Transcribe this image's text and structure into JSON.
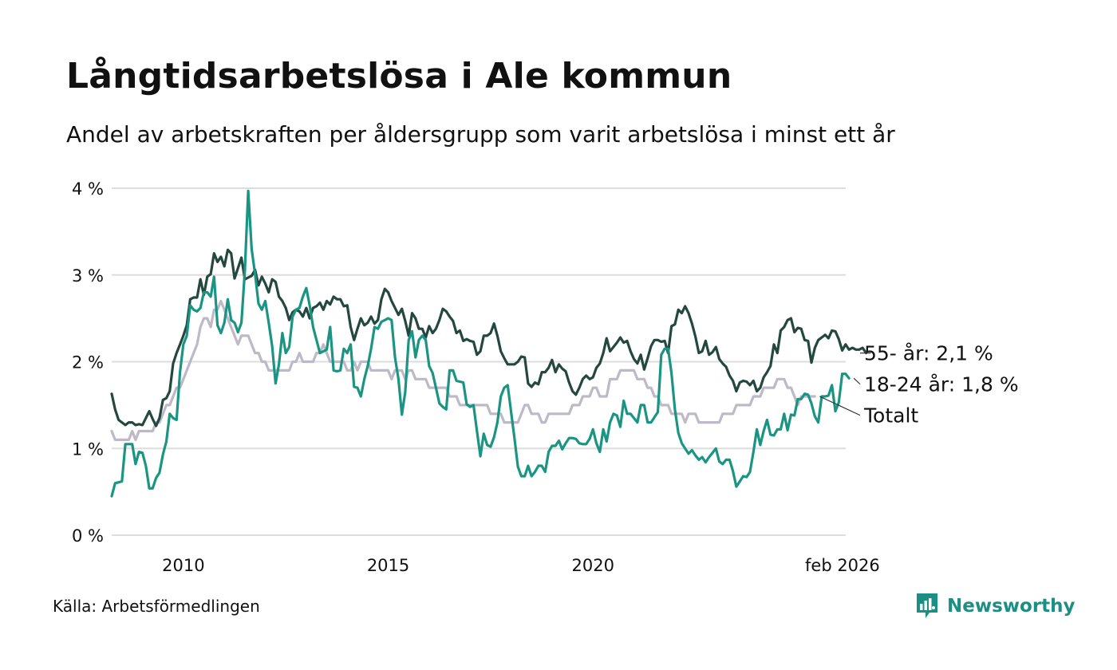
{
  "title": "Långtidsarbetslösa i Ale kommun",
  "subtitle": "Andel av arbetskraften per åldersgrupp som varit arbetslösa i minst ett år",
  "source": "Källa: Arbetsförmedlingen",
  "brand": "Newsworthy",
  "colors": {
    "dark_series": "#24473f",
    "teal_series": "#1a9483",
    "total_series": "#bdb9c9",
    "grid": "#dddddd",
    "brand": "#1b8f84"
  },
  "chart_data": {
    "type": "line",
    "title": "Långtidsarbetslösa i Ale kommun",
    "xlabel": "",
    "ylabel": "",
    "x_start": 2008.25,
    "x_step": 0.0833333,
    "xlim": [
      2008.25,
      2026.17
    ],
    "ylim": [
      0,
      4
    ],
    "y_ticks": [
      {
        "value": 0,
        "label": "0 %"
      },
      {
        "value": 1,
        "label": "1 %"
      },
      {
        "value": 2,
        "label": "2 %"
      },
      {
        "value": 3,
        "label": "3 %"
      },
      {
        "value": 4,
        "label": "4 %"
      }
    ],
    "x_ticks": [
      {
        "value": 2010,
        "label": "2010"
      },
      {
        "value": 2015,
        "label": "2015"
      },
      {
        "value": 2020,
        "label": "2020"
      },
      {
        "value": 2026.09,
        "label": "feb 2026"
      }
    ],
    "grid": true,
    "series": [
      {
        "name": "Totalt",
        "label": "Totalt",
        "color": "#bdb9c9",
        "values": [
          1.2,
          1.1,
          1.1,
          1.1,
          1.1,
          1.1,
          1.2,
          1.1,
          1.2,
          1.2,
          1.2,
          1.2,
          1.2,
          1.3,
          1.3,
          1.4,
          1.5,
          1.5,
          1.6,
          1.7,
          1.7,
          1.8,
          1.9,
          2.0,
          2.1,
          2.2,
          2.4,
          2.5,
          2.5,
          2.4,
          2.6,
          2.6,
          2.7,
          2.6,
          2.5,
          2.4,
          2.3,
          2.2,
          2.3,
          2.3,
          2.3,
          2.2,
          2.1,
          2.1,
          2.0,
          2.0,
          1.9,
          1.9,
          1.9,
          1.9,
          1.9,
          1.9,
          1.9,
          2.0,
          2.0,
          2.1,
          2.0,
          2.0,
          2.0,
          2.0,
          2.1,
          2.1,
          2.2,
          2.1,
          2.0,
          2.0,
          2.0,
          2.0,
          2.0,
          1.9,
          1.9,
          2.0,
          1.9,
          2.0,
          2.0,
          2.0,
          1.9,
          1.9,
          1.9,
          1.9,
          1.9,
          1.9,
          1.8,
          1.9,
          1.9,
          1.9,
          1.8,
          1.9,
          1.9,
          1.8,
          1.8,
          1.8,
          1.8,
          1.7,
          1.7,
          1.7,
          1.7,
          1.7,
          1.7,
          1.6,
          1.6,
          1.6,
          1.5,
          1.5,
          1.5,
          1.5,
          1.5,
          1.5,
          1.5,
          1.5,
          1.5,
          1.4,
          1.4,
          1.4,
          1.4,
          1.3,
          1.3,
          1.3,
          1.3,
          1.3,
          1.4,
          1.5,
          1.5,
          1.4,
          1.4,
          1.4,
          1.3,
          1.3,
          1.4,
          1.4,
          1.4,
          1.4,
          1.4,
          1.4,
          1.4,
          1.5,
          1.5,
          1.5,
          1.6,
          1.6,
          1.6,
          1.7,
          1.7,
          1.6,
          1.6,
          1.6,
          1.8,
          1.8,
          1.8,
          1.9,
          1.9,
          1.9,
          1.9,
          1.9,
          1.8,
          1.8,
          1.8,
          1.7,
          1.7,
          1.6,
          1.6,
          1.5,
          1.5,
          1.5,
          1.4,
          1.4,
          1.4,
          1.4,
          1.3,
          1.4,
          1.4,
          1.4,
          1.3,
          1.3,
          1.3,
          1.3,
          1.3,
          1.3,
          1.3,
          1.4,
          1.4,
          1.4,
          1.4,
          1.5,
          1.5,
          1.5,
          1.5,
          1.5,
          1.6,
          1.6,
          1.6,
          1.7,
          1.7,
          1.7,
          1.7,
          1.8,
          1.8,
          1.8,
          1.7,
          1.7,
          1.6,
          1.5,
          1.6,
          1.6,
          1.6,
          1.6,
          1.6
        ]
      },
      {
        "name": "55- år",
        "label": "55- år: 2,1 %",
        "color": "#24473f",
        "values": [
          1.63,
          1.45,
          1.33,
          1.3,
          1.27,
          1.3,
          1.3,
          1.27,
          1.28,
          1.27,
          1.35,
          1.43,
          1.34,
          1.26,
          1.35,
          1.56,
          1.58,
          1.66,
          1.98,
          2.1,
          2.2,
          2.3,
          2.42,
          2.72,
          2.74,
          2.74,
          2.95,
          2.77,
          2.98,
          3.01,
          3.25,
          3.15,
          3.21,
          3.1,
          3.29,
          3.25,
          2.96,
          3.08,
          3.2,
          2.95,
          2.97,
          2.99,
          3.06,
          2.88,
          2.98,
          2.9,
          2.8,
          2.95,
          2.92,
          2.75,
          2.7,
          2.62,
          2.48,
          2.57,
          2.6,
          2.58,
          2.52,
          2.62,
          2.5,
          2.62,
          2.64,
          2.68,
          2.6,
          2.7,
          2.66,
          2.75,
          2.72,
          2.72,
          2.64,
          2.65,
          2.4,
          2.25,
          2.38,
          2.5,
          2.42,
          2.45,
          2.52,
          2.44,
          2.48,
          2.72,
          2.84,
          2.8,
          2.7,
          2.62,
          2.54,
          2.61,
          2.47,
          2.3,
          2.56,
          2.5,
          2.38,
          2.38,
          2.28,
          2.41,
          2.33,
          2.38,
          2.48,
          2.61,
          2.58,
          2.52,
          2.47,
          2.33,
          2.36,
          2.24,
          2.26,
          2.24,
          2.23,
          2.08,
          2.12,
          2.3,
          2.3,
          2.33,
          2.44,
          2.3,
          2.12,
          2.04,
          1.97,
          1.97,
          1.97,
          2.0,
          2.06,
          2.05,
          1.75,
          1.71,
          1.76,
          1.74,
          1.88,
          1.88,
          1.93,
          2.02,
          1.88,
          1.97,
          1.92,
          1.89,
          1.76,
          1.66,
          1.62,
          1.7,
          1.8,
          1.84,
          1.8,
          1.82,
          1.93,
          1.98,
          2.1,
          2.27,
          2.12,
          2.17,
          2.22,
          2.28,
          2.22,
          2.24,
          2.12,
          2.03,
          1.98,
          2.08,
          1.91,
          2.04,
          2.18,
          2.25,
          2.25,
          2.23,
          2.24,
          2.1,
          2.41,
          2.43,
          2.6,
          2.56,
          2.64,
          2.56,
          2.44,
          2.29,
          2.1,
          2.12,
          2.24,
          2.08,
          2.11,
          2.17,
          2.03,
          1.98,
          1.94,
          1.84,
          1.78,
          1.66,
          1.76,
          1.78,
          1.77,
          1.73,
          1.78,
          1.66,
          1.7,
          1.82,
          1.88,
          1.95,
          2.2,
          2.1,
          2.36,
          2.4,
          2.48,
          2.5,
          2.34,
          2.39,
          2.38,
          2.25,
          2.24,
          1.99,
          2.16,
          2.25,
          2.28,
          2.31,
          2.27,
          2.36,
          2.35,
          2.26,
          2.13,
          2.2,
          2.14,
          2.16,
          2.14,
          2.14,
          2.16,
          2.1
        ]
      },
      {
        "name": "18-24 år",
        "label": "18-24 år: 1,8 %",
        "color": "#1a9483",
        "values": [
          0.45,
          0.6,
          0.61,
          0.62,
          1.05,
          1.05,
          1.05,
          0.82,
          0.96,
          0.95,
          0.8,
          0.54,
          0.54,
          0.66,
          0.72,
          0.93,
          1.08,
          1.4,
          1.35,
          1.33,
          1.88,
          2.2,
          2.3,
          2.65,
          2.6,
          2.58,
          2.62,
          2.8,
          2.8,
          2.75,
          2.98,
          2.42,
          2.33,
          2.45,
          2.72,
          2.48,
          2.45,
          2.34,
          2.45,
          3.05,
          3.97,
          3.3,
          3.01,
          2.67,
          2.6,
          2.7,
          2.45,
          2.18,
          1.75,
          1.97,
          2.33,
          2.1,
          2.17,
          2.52,
          2.6,
          2.62,
          2.75,
          2.85,
          2.65,
          2.4,
          2.25,
          2.1,
          2.12,
          2.14,
          2.4,
          1.9,
          1.89,
          1.9,
          2.15,
          2.1,
          2.2,
          1.71,
          1.7,
          1.6,
          1.8,
          1.95,
          2.15,
          2.4,
          2.38,
          2.46,
          2.48,
          2.5,
          2.48,
          2.05,
          1.8,
          1.39,
          1.65,
          2.25,
          2.35,
          2.05,
          2.25,
          2.3,
          2.25,
          1.95,
          1.87,
          1.7,
          1.52,
          1.48,
          1.45,
          1.9,
          1.9,
          1.78,
          1.77,
          1.76,
          1.51,
          1.48,
          1.5,
          1.2,
          0.91,
          1.17,
          1.04,
          1.02,
          1.13,
          1.3,
          1.6,
          1.7,
          1.73,
          1.42,
          1.12,
          0.79,
          0.68,
          0.68,
          0.8,
          0.68,
          0.73,
          0.8,
          0.8,
          0.73,
          0.96,
          1.03,
          1.03,
          1.09,
          0.99,
          1.06,
          1.12,
          1.12,
          1.11,
          1.06,
          1.05,
          1.05,
          1.11,
          1.22,
          1.06,
          0.96,
          1.22,
          1.08,
          1.3,
          1.4,
          1.38,
          1.25,
          1.55,
          1.4,
          1.4,
          1.35,
          1.3,
          1.5,
          1.5,
          1.3,
          1.3,
          1.36,
          1.42,
          2.08,
          2.15,
          2.15,
          1.87,
          1.45,
          1.18,
          1.06,
          1.0,
          0.94,
          0.98,
          0.92,
          0.87,
          0.9,
          0.84,
          0.9,
          0.95,
          1.0,
          0.85,
          0.82,
          0.87,
          0.87,
          0.74,
          0.56,
          0.62,
          0.68,
          0.67,
          0.73,
          0.96,
          1.22,
          1.04,
          1.2,
          1.33,
          1.16,
          1.15,
          1.22,
          1.22,
          1.4,
          1.21,
          1.39,
          1.38,
          1.57,
          1.57,
          1.63,
          1.62,
          1.52,
          1.37,
          1.3,
          1.6,
          1.6,
          1.61,
          1.73,
          1.43,
          1.53,
          1.86,
          1.86,
          1.81
        ]
      }
    ]
  }
}
